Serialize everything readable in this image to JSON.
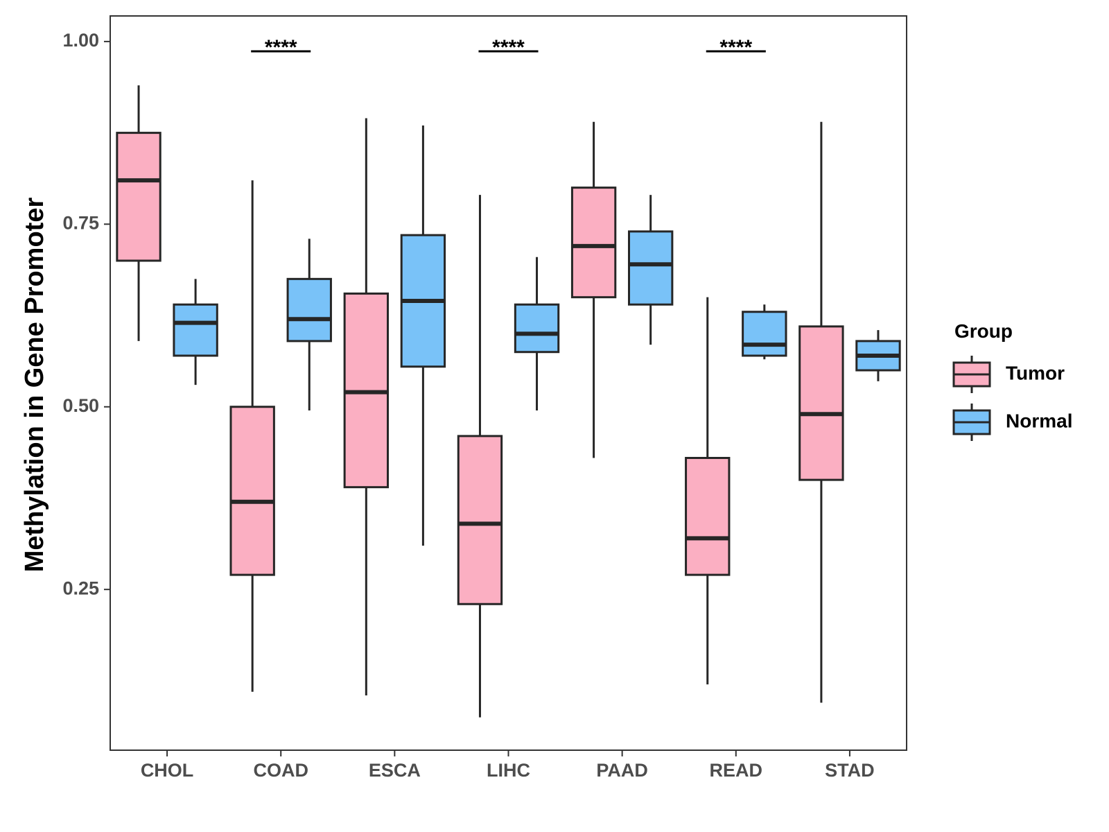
{
  "chart_data": {
    "type": "boxplot",
    "title": "",
    "xlabel": "",
    "ylabel": "Methylation in Gene Promoter",
    "ylim": [
      0.03,
      1.035
    ],
    "yticks": [
      0.25,
      0.5,
      0.75,
      1.0
    ],
    "ytick_labels": [
      "0.25",
      "0.50",
      "0.75",
      "1.00"
    ],
    "categories": [
      "CHOL",
      "COAD",
      "ESCA",
      "LIHC",
      "PAAD",
      "READ",
      "STAD"
    ],
    "legend": {
      "title": "Group",
      "position": "right",
      "entries": [
        {
          "name": "Tumor",
          "color": "#fbafc2"
        },
        {
          "name": "Normal",
          "color": "#79c2f8"
        }
      ]
    },
    "series": [
      {
        "name": "Tumor",
        "color": "#fbafc2",
        "boxes": [
          {
            "min": 0.59,
            "q1": 0.7,
            "median": 0.81,
            "q3": 0.875,
            "max": 0.94
          },
          {
            "min": 0.11,
            "q1": 0.27,
            "median": 0.37,
            "q3": 0.5,
            "max": 0.81
          },
          {
            "min": 0.105,
            "q1": 0.39,
            "median": 0.52,
            "q3": 0.655,
            "max": 0.895
          },
          {
            "min": 0.075,
            "q1": 0.23,
            "median": 0.34,
            "q3": 0.46,
            "max": 0.79
          },
          {
            "min": 0.43,
            "q1": 0.65,
            "median": 0.72,
            "q3": 0.8,
            "max": 0.89
          },
          {
            "min": 0.12,
            "q1": 0.27,
            "median": 0.32,
            "q3": 0.43,
            "max": 0.65
          },
          {
            "min": 0.095,
            "q1": 0.4,
            "median": 0.49,
            "q3": 0.61,
            "max": 0.89
          }
        ]
      },
      {
        "name": "Normal",
        "color": "#79c2f8",
        "boxes": [
          {
            "min": 0.53,
            "q1": 0.57,
            "median": 0.615,
            "q3": 0.64,
            "max": 0.675
          },
          {
            "min": 0.495,
            "q1": 0.59,
            "median": 0.62,
            "q3": 0.675,
            "max": 0.73
          },
          {
            "min": 0.31,
            "q1": 0.555,
            "median": 0.645,
            "q3": 0.735,
            "max": 0.885
          },
          {
            "min": 0.495,
            "q1": 0.575,
            "median": 0.6,
            "q3": 0.64,
            "max": 0.705
          },
          {
            "min": 0.585,
            "q1": 0.64,
            "median": 0.695,
            "q3": 0.74,
            "max": 0.79
          },
          {
            "min": 0.565,
            "q1": 0.57,
            "median": 0.585,
            "q3": 0.63,
            "max": 0.64
          },
          {
            "min": 0.535,
            "q1": 0.55,
            "median": 0.57,
            "q3": 0.59,
            "max": 0.605
          }
        ]
      }
    ],
    "annotations": [
      {
        "category": "CHOL",
        "text": ""
      },
      {
        "category": "COAD",
        "text": "****"
      },
      {
        "category": "ESCA",
        "text": ""
      },
      {
        "category": "LIHC",
        "text": "****"
      },
      {
        "category": "PAAD",
        "text": ""
      },
      {
        "category": "READ",
        "text": "****"
      },
      {
        "category": "STAD",
        "text": ""
      }
    ]
  }
}
